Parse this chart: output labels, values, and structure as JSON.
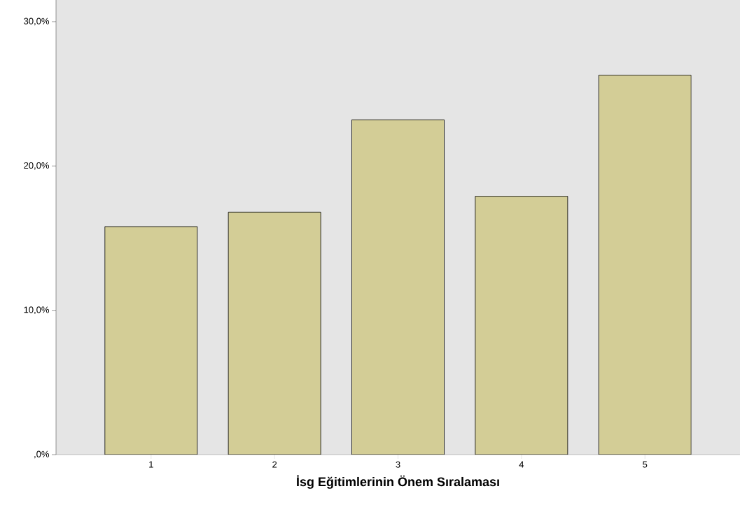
{
  "chart_data": {
    "type": "bar",
    "xlabel": "İsg Eğitimlerinin Önem Sıralaması",
    "categories": [
      "1",
      "2",
      "3",
      "4",
      "5"
    ],
    "values": [
      15.8,
      16.8,
      23.2,
      17.9,
      26.3
    ],
    "color": "#d3cd96",
    "ylim": [
      0,
      31.5
    ],
    "yticks": [
      {
        "value": 0,
        "label": ",0%"
      },
      {
        "value": 10,
        "label": "10,0%"
      },
      {
        "value": 20,
        "label": "20,0%"
      },
      {
        "value": 30,
        "label": "30,0%"
      }
    ]
  }
}
